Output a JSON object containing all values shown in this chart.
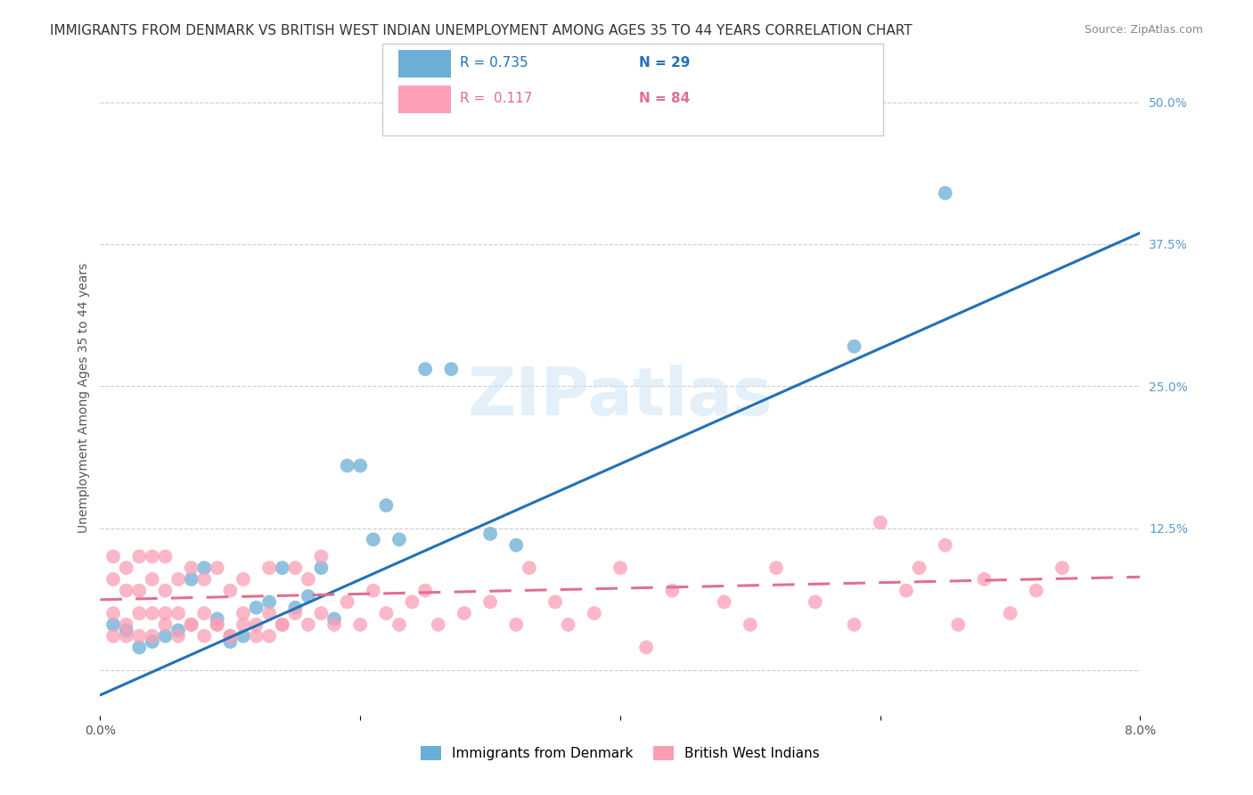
{
  "title": "IMMIGRANTS FROM DENMARK VS BRITISH WEST INDIAN UNEMPLOYMENT AMONG AGES 35 TO 44 YEARS CORRELATION CHART",
  "source": "Source: ZipAtlas.com",
  "ylabel": "Unemployment Among Ages 35 to 44 years",
  "xlim": [
    0.0,
    0.08
  ],
  "ylim": [
    -0.04,
    0.52
  ],
  "xticks": [
    0.0,
    0.02,
    0.04,
    0.06,
    0.08
  ],
  "xtick_labels": [
    "0.0%",
    "",
    "",
    "",
    "8.0%"
  ],
  "yticks_right": [
    0.0,
    0.125,
    0.25,
    0.375,
    0.5
  ],
  "ytick_labels_right": [
    "",
    "12.5%",
    "25.0%",
    "37.5%",
    "50.0%"
  ],
  "blue_color": "#6baed6",
  "pink_color": "#fa9fb5",
  "blue_line_color": "#2171b5",
  "pink_line_color": "#e07090",
  "legend_r_blue": "R = 0.735",
  "legend_n_blue": "N = 29",
  "legend_r_pink": "R =  0.117",
  "legend_n_pink": "N = 84",
  "watermark": "ZIPatlas",
  "blue_x": [
    0.001,
    0.002,
    0.003,
    0.004,
    0.005,
    0.006,
    0.007,
    0.008,
    0.009,
    0.01,
    0.011,
    0.012,
    0.013,
    0.014,
    0.015,
    0.016,
    0.017,
    0.018,
    0.019,
    0.02,
    0.021,
    0.022,
    0.023,
    0.025,
    0.027,
    0.03,
    0.032,
    0.058,
    0.065
  ],
  "blue_y": [
    0.04,
    0.035,
    0.02,
    0.025,
    0.03,
    0.035,
    0.08,
    0.09,
    0.045,
    0.025,
    0.03,
    0.055,
    0.06,
    0.09,
    0.055,
    0.065,
    0.09,
    0.045,
    0.18,
    0.18,
    0.115,
    0.145,
    0.115,
    0.265,
    0.265,
    0.12,
    0.11,
    0.285,
    0.42
  ],
  "pink_x": [
    0.001,
    0.001,
    0.001,
    0.002,
    0.002,
    0.002,
    0.003,
    0.003,
    0.003,
    0.004,
    0.004,
    0.004,
    0.005,
    0.005,
    0.005,
    0.006,
    0.006,
    0.007,
    0.007,
    0.008,
    0.008,
    0.009,
    0.009,
    0.01,
    0.01,
    0.011,
    0.011,
    0.012,
    0.013,
    0.013,
    0.014,
    0.015,
    0.015,
    0.016,
    0.016,
    0.017,
    0.017,
    0.018,
    0.019,
    0.02,
    0.021,
    0.022,
    0.023,
    0.024,
    0.025,
    0.026,
    0.028,
    0.03,
    0.032,
    0.033,
    0.035,
    0.036,
    0.038,
    0.04,
    0.042,
    0.044,
    0.048,
    0.05,
    0.052,
    0.055,
    0.058,
    0.06,
    0.062,
    0.063,
    0.065,
    0.066,
    0.068,
    0.07,
    0.072,
    0.074,
    0.001,
    0.002,
    0.003,
    0.004,
    0.005,
    0.006,
    0.007,
    0.008,
    0.009,
    0.01,
    0.011,
    0.012,
    0.013,
    0.014
  ],
  "pink_y": [
    0.05,
    0.08,
    0.1,
    0.04,
    0.07,
    0.09,
    0.05,
    0.07,
    0.1,
    0.05,
    0.08,
    0.1,
    0.04,
    0.07,
    0.1,
    0.05,
    0.08,
    0.04,
    0.09,
    0.05,
    0.08,
    0.04,
    0.09,
    0.03,
    0.07,
    0.05,
    0.08,
    0.04,
    0.05,
    0.09,
    0.04,
    0.05,
    0.09,
    0.04,
    0.08,
    0.05,
    0.1,
    0.04,
    0.06,
    0.04,
    0.07,
    0.05,
    0.04,
    0.06,
    0.07,
    0.04,
    0.05,
    0.06,
    0.04,
    0.09,
    0.06,
    0.04,
    0.05,
    0.09,
    0.02,
    0.07,
    0.06,
    0.04,
    0.09,
    0.06,
    0.04,
    0.13,
    0.07,
    0.09,
    0.11,
    0.04,
    0.08,
    0.05,
    0.07,
    0.09,
    0.03,
    0.03,
    0.03,
    0.03,
    0.05,
    0.03,
    0.04,
    0.03,
    0.04,
    0.03,
    0.04,
    0.03,
    0.03,
    0.04
  ],
  "blue_trend_x": [
    0.0,
    0.08
  ],
  "blue_trend_y": [
    -0.022,
    0.385
  ],
  "pink_trend_x": [
    0.0,
    0.08
  ],
  "pink_trend_y": [
    0.062,
    0.082
  ],
  "background_color": "#ffffff",
  "grid_color": "#cccccc",
  "title_fontsize": 11,
  "axis_fontsize": 10,
  "tick_fontsize": 10,
  "legend_fontsize": 11
}
